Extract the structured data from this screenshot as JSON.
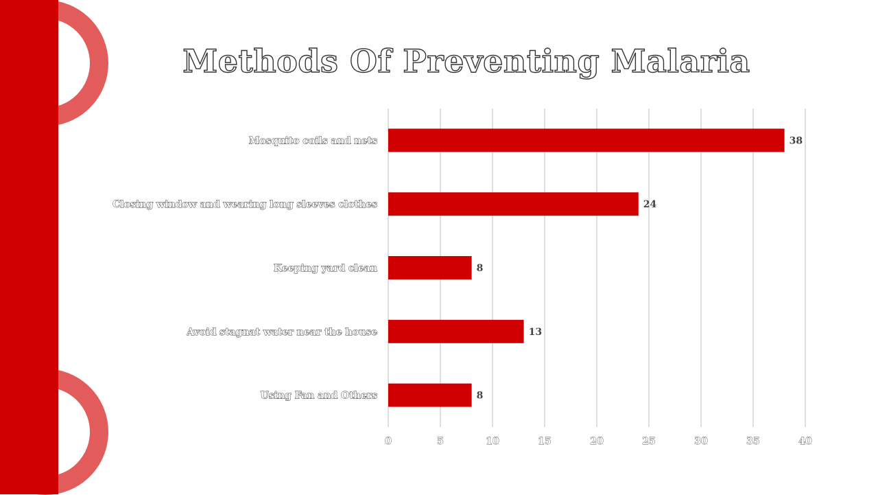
{
  "slide": {
    "title": "Methods Of Preventing Malaria"
  },
  "colors": {
    "accent": "#d00000",
    "ring": "#e25c5c",
    "bar": "#d00000",
    "grid": "#bfbfbf"
  },
  "chart_data": {
    "type": "bar",
    "orientation": "horizontal",
    "title": "Methods Of Preventing Malaria",
    "categories": [
      "Mosquito coils and nets",
      "Closing window and wearing long sleeves clothes",
      "Keeping yard clean",
      "Avoid stagnat water near the house",
      "Using Fan and Others"
    ],
    "values": [
      38,
      24,
      8,
      13,
      8
    ],
    "xlim": [
      0,
      40
    ],
    "x_ticks": [
      "0",
      "5",
      "10",
      "15",
      "20",
      "25",
      "30",
      "35",
      "40"
    ],
    "grid": true,
    "data_labels": true
  }
}
